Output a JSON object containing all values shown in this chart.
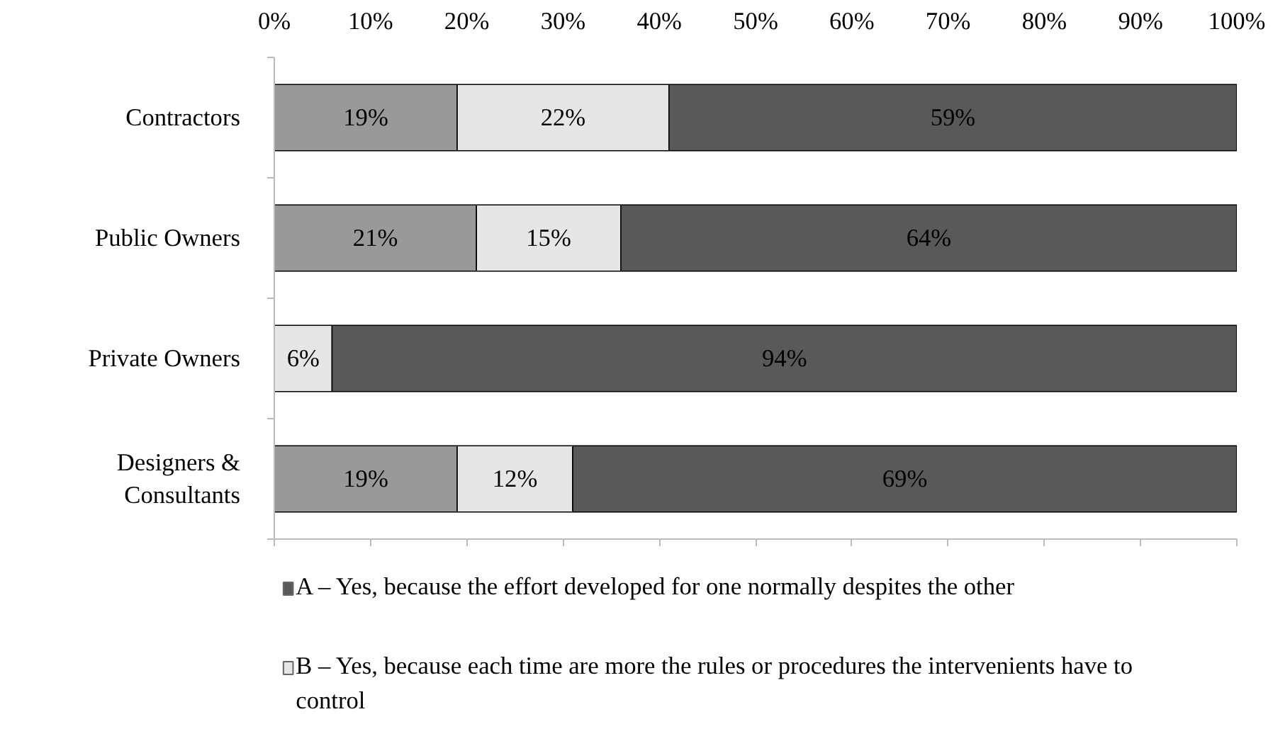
{
  "chart_data": {
    "type": "bar",
    "orientation": "horizontal",
    "stacked": true,
    "categories": [
      "Contractors",
      "Public Owners",
      "Private Owners",
      "Designers & Consultants"
    ],
    "series": [
      {
        "color": "#999999",
        "values": [
          19,
          21,
          null,
          19
        ],
        "value_labels": [
          "19%",
          "21%",
          null,
          "19%"
        ]
      },
      {
        "name": "B – Yes, because each time are more the rules or procedures the intervenients have to control",
        "color": "#e6e6e6",
        "values": [
          22,
          15,
          6,
          12
        ],
        "value_labels": [
          "22%",
          "15%",
          "6%",
          "12%"
        ]
      },
      {
        "name": "A – Yes, because the effort developed for one normally despites the other",
        "color": "#595959",
        "values": [
          59,
          64,
          94,
          69
        ],
        "value_labels": [
          "59%",
          "64%",
          "94%",
          "69%"
        ]
      }
    ],
    "xlim": [
      0,
      100
    ],
    "xticks": [
      {
        "value": 0,
        "label": "0%"
      },
      {
        "value": 10,
        "label": "10%"
      },
      {
        "value": 20,
        "label": "20%"
      },
      {
        "value": 30,
        "label": "30%"
      },
      {
        "value": 40,
        "label": "40%"
      },
      {
        "value": 50,
        "label": "50%"
      },
      {
        "value": 60,
        "label": "60%"
      },
      {
        "value": 70,
        "label": "70%"
      },
      {
        "value": 80,
        "label": "80%"
      },
      {
        "value": 90,
        "label": "90%"
      },
      {
        "value": 100,
        "label": "100%"
      }
    ],
    "grid": false,
    "legend": "bottom"
  }
}
